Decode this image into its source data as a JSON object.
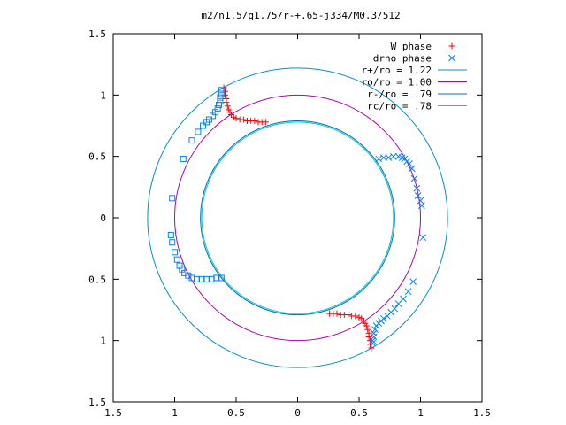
{
  "chart_data": {
    "type": "scatter",
    "title": "m2/n1.5/q1.75/r-+.65-j334/M0.3/512",
    "xlabel": "",
    "ylabel": "",
    "xlim": [
      -1.5,
      1.5
    ],
    "ylim": [
      -1.5,
      1.5
    ],
    "xticks": [
      -1.5,
      -1,
      -0.5,
      0,
      0.5,
      1,
      1.5
    ],
    "xtick_labels": [
      "1.5",
      "1",
      "0.5",
      "0",
      "0.5",
      "1",
      "1.5"
    ],
    "yticks": [
      1.5,
      1,
      0.5,
      0,
      -0.5,
      -1,
      -1.5
    ],
    "ytick_labels": [
      "1.5",
      "1",
      "0.5",
      "0",
      "0.5",
      "1",
      "1.5"
    ],
    "grid": false,
    "legend_position": "top-right",
    "series": [
      {
        "name": "W phase",
        "marker": "+",
        "color": "#ff0000",
        "points": [
          [
            -0.6,
            1.06
          ],
          [
            -0.59,
            1.03
          ],
          [
            -0.59,
            1.0
          ],
          [
            -0.58,
            0.97
          ],
          [
            -0.58,
            0.94
          ],
          [
            -0.57,
            0.91
          ],
          [
            -0.56,
            0.88
          ],
          [
            -0.55,
            0.86
          ],
          [
            -0.54,
            0.84
          ],
          [
            -0.52,
            0.82
          ],
          [
            -0.5,
            0.81
          ],
          [
            -0.47,
            0.8
          ],
          [
            -0.44,
            0.8
          ],
          [
            -0.41,
            0.79
          ],
          [
            -0.38,
            0.79
          ],
          [
            -0.35,
            0.79
          ],
          [
            -0.32,
            0.78
          ],
          [
            -0.29,
            0.78
          ],
          [
            -0.26,
            0.78
          ],
          [
            0.6,
            -1.06
          ],
          [
            0.59,
            -1.03
          ],
          [
            0.59,
            -1.0
          ],
          [
            0.58,
            -0.97
          ],
          [
            0.58,
            -0.94
          ],
          [
            0.57,
            -0.91
          ],
          [
            0.56,
            -0.88
          ],
          [
            0.55,
            -0.86
          ],
          [
            0.54,
            -0.84
          ],
          [
            0.52,
            -0.82
          ],
          [
            0.5,
            -0.81
          ],
          [
            0.47,
            -0.8
          ],
          [
            0.44,
            -0.8
          ],
          [
            0.41,
            -0.79
          ],
          [
            0.38,
            -0.79
          ],
          [
            0.35,
            -0.79
          ],
          [
            0.32,
            -0.78
          ],
          [
            0.29,
            -0.78
          ],
          [
            0.26,
            -0.78
          ]
        ]
      },
      {
        "name": "drho phase",
        "marker": "x",
        "color": "#0080ff",
        "points": [
          [
            0.61,
            -1.02
          ],
          [
            0.61,
            -1.0
          ],
          [
            0.62,
            -0.97
          ],
          [
            0.62,
            -0.94
          ],
          [
            0.63,
            -0.91
          ],
          [
            0.64,
            -0.88
          ],
          [
            0.66,
            -0.86
          ],
          [
            0.68,
            -0.84
          ],
          [
            0.7,
            -0.82
          ],
          [
            0.73,
            -0.8
          ],
          [
            0.76,
            -0.77
          ],
          [
            0.79,
            -0.74
          ],
          [
            0.82,
            -0.7
          ],
          [
            0.86,
            -0.66
          ],
          [
            0.9,
            -0.6
          ],
          [
            0.94,
            -0.52
          ],
          [
            0.66,
            0.48
          ],
          [
            0.7,
            0.49
          ],
          [
            0.74,
            0.49
          ],
          [
            0.78,
            0.5
          ],
          [
            0.82,
            0.5
          ],
          [
            0.85,
            0.49
          ],
          [
            0.87,
            0.48
          ],
          [
            0.89,
            0.46
          ],
          [
            0.91,
            0.44
          ],
          [
            0.93,
            0.4
          ],
          [
            0.95,
            0.32
          ],
          [
            0.97,
            0.24
          ],
          [
            0.98,
            0.18
          ],
          [
            1.0,
            0.14
          ],
          [
            1.01,
            0.1
          ],
          [
            1.02,
            -0.16
          ]
        ]
      },
      {
        "name": "",
        "marker": "square",
        "color": "#0080ff",
        "points": [
          [
            -0.62,
            1.04
          ],
          [
            -0.62,
            1.01
          ],
          [
            -0.63,
            0.98
          ],
          [
            -0.63,
            0.95
          ],
          [
            -0.64,
            0.92
          ],
          [
            -0.65,
            0.89
          ],
          [
            -0.67,
            0.86
          ],
          [
            -0.69,
            0.83
          ],
          [
            -0.72,
            0.8
          ],
          [
            -0.74,
            0.78
          ],
          [
            -0.77,
            0.75
          ],
          [
            -0.81,
            0.7
          ],
          [
            -0.86,
            0.63
          ],
          [
            -0.93,
            0.48
          ],
          [
            -1.02,
            0.16
          ],
          [
            -1.03,
            -0.14
          ],
          [
            -1.02,
            -0.2
          ],
          [
            -1.0,
            -0.28
          ],
          [
            -0.98,
            -0.34
          ],
          [
            -0.96,
            -0.39
          ],
          [
            -0.94,
            -0.42
          ],
          [
            -0.92,
            -0.45
          ],
          [
            -0.89,
            -0.47
          ],
          [
            -0.86,
            -0.49
          ],
          [
            -0.82,
            -0.5
          ],
          [
            -0.78,
            -0.5
          ],
          [
            -0.74,
            -0.5
          ],
          [
            -0.7,
            -0.5
          ],
          [
            -0.66,
            -0.49
          ],
          [
            -0.62,
            -0.49
          ]
        ]
      }
    ],
    "circles": [
      {
        "name": "r+/ro = 1.22",
        "radius": 1.22,
        "color": "#0090c8"
      },
      {
        "name": "ro/ro = 1.00",
        "radius": 1.0,
        "color": "#b000b0"
      },
      {
        "name": "r-/ro = .79",
        "radius": 0.79,
        "color": "#0070c0"
      },
      {
        "name": "rc/ro = .78",
        "radius": 0.78,
        "color": "#00c8d8"
      }
    ]
  }
}
